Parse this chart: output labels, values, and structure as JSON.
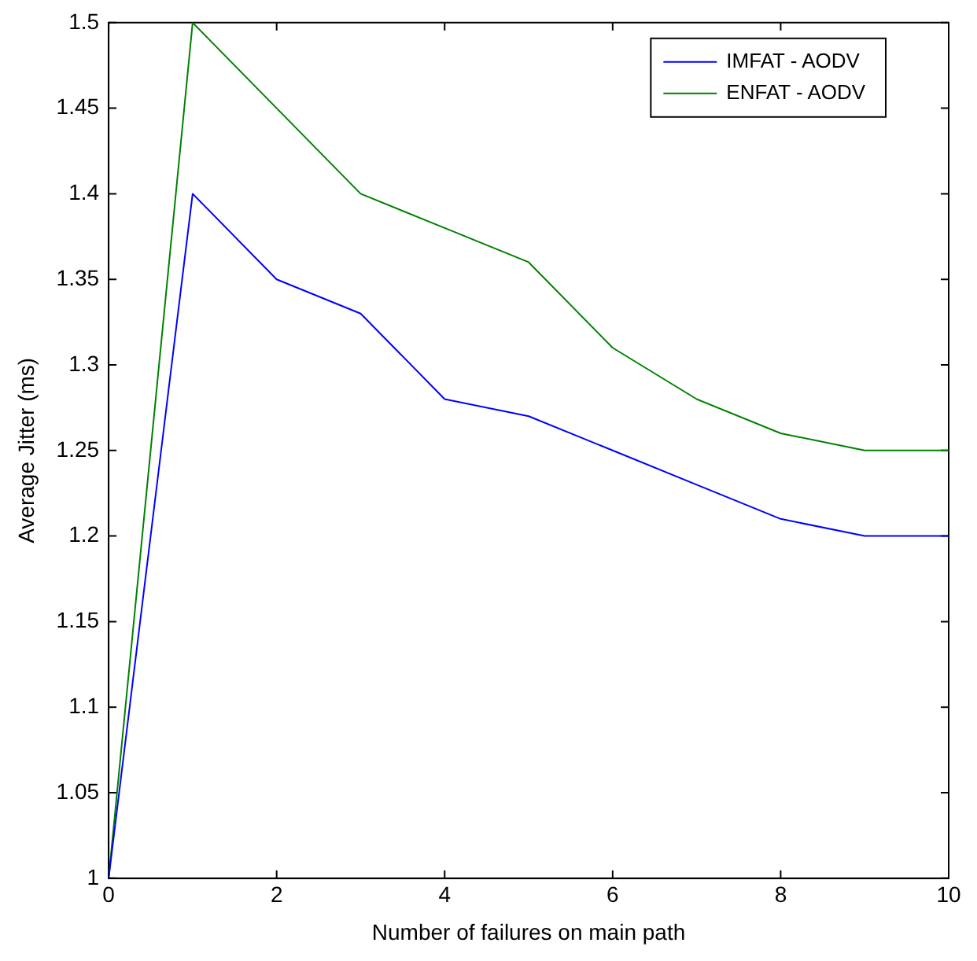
{
  "chart_data": {
    "type": "line",
    "xlabel": "Number of failures on main path",
    "ylabel": "Average Jitter (ms)",
    "x": [
      0,
      1,
      2,
      3,
      4,
      5,
      6,
      7,
      8,
      9,
      10
    ],
    "series": [
      {
        "name": "IMFAT - AODV",
        "color": "#0000ff",
        "values": [
          1,
          1.4,
          1.35,
          1.33,
          1.28,
          1.27,
          1.25,
          1.23,
          1.21,
          1.2,
          1.2
        ]
      },
      {
        "name": "ENFAT - AODV",
        "color": "#008000",
        "values": [
          1,
          1.5,
          1.45,
          1.4,
          1.38,
          1.36,
          1.31,
          1.28,
          1.26,
          1.25,
          1.25
        ]
      }
    ],
    "xlim": [
      0,
      10
    ],
    "xticks": [
      0,
      2,
      4,
      6,
      8,
      10
    ],
    "ylim": [
      1,
      1.5
    ],
    "yticks": [
      1,
      1.05,
      1.1,
      1.15,
      1.2,
      1.25,
      1.3,
      1.35,
      1.4,
      1.45,
      1.5
    ],
    "grid": false,
    "legend": "top right",
    "marker": "none",
    "line_style": "solid"
  }
}
